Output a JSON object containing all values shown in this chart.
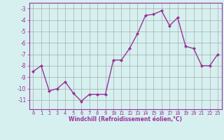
{
  "x": [
    0,
    1,
    2,
    3,
    4,
    5,
    6,
    7,
    8,
    9,
    10,
    11,
    12,
    13,
    14,
    15,
    16,
    17,
    18,
    19,
    20,
    21,
    22,
    23
  ],
  "y": [
    -8.5,
    -8.0,
    -10.2,
    -10.0,
    -9.4,
    -10.4,
    -11.1,
    -10.5,
    -10.5,
    -10.5,
    -7.5,
    -7.5,
    -6.5,
    -5.2,
    -3.6,
    -3.5,
    -3.2,
    -4.5,
    -3.8,
    -6.3,
    -6.5,
    -8.0,
    -8.0,
    -7.0
  ],
  "line_color": "#993399",
  "marker": "D",
  "marker_size": 2,
  "bg_color": "#d6f0f0",
  "grid_color": "#aaaaaa",
  "ylim": [
    -11.8,
    -2.5
  ],
  "xlim": [
    -0.5,
    23.5
  ],
  "yticks": [
    -11,
    -10,
    -9,
    -8,
    -7,
    -6,
    -5,
    -4,
    -3
  ],
  "xticks": [
    0,
    1,
    2,
    3,
    4,
    5,
    6,
    7,
    8,
    9,
    10,
    11,
    12,
    13,
    14,
    15,
    16,
    17,
    18,
    19,
    20,
    21,
    22,
    23
  ],
  "xlabel": "Windchill (Refroidissement éolien,°C)",
  "text_color": "#993399",
  "linewidth": 1.0,
  "tick_fontsize": 5.0,
  "xlabel_fontsize": 5.5
}
